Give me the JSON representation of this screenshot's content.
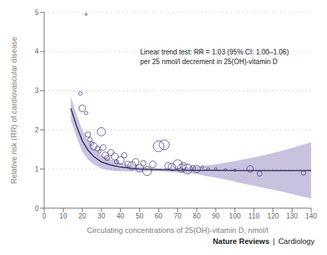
{
  "chart_data": {
    "type": "scatter",
    "xlabel": "Circulating concentrations of 25(OH)-vitamin D, nmol/l",
    "ylabel": "Relative risk (RR) of cardiovascular disease",
    "xlim": [
      0,
      140
    ],
    "ylim": [
      0,
      5
    ],
    "xticks": [
      0,
      10,
      20,
      30,
      40,
      50,
      60,
      70,
      80,
      90,
      100,
      110,
      120,
      130,
      140
    ],
    "yticks": [
      0,
      1,
      2,
      3,
      4,
      5
    ],
    "grid": "y",
    "annotations": [
      "Linear trend test: RR = 1.03 (95% CI: 1.00–1.06)\nper 25 nmol/l decrement in 25(OH)-vitamin D"
    ],
    "source": [
      "Nature Reviews",
      "|",
      "Cardiology"
    ],
    "series": [
      {
        "type": "band",
        "color": "#8878b8",
        "x": [
          14,
          17,
          20,
          23,
          26,
          30,
          35,
          40,
          45,
          50,
          55,
          60,
          65,
          70,
          75,
          80,
          85,
          90,
          95,
          100,
          105,
          110,
          115,
          120,
          125,
          130,
          135,
          140
        ],
        "lower": [
          2.25,
          1.82,
          1.44,
          1.24,
          1.12,
          1.01,
          0.96,
          0.94,
          0.94,
          0.94,
          0.94,
          0.94,
          0.93,
          0.91,
          0.9,
          0.87,
          0.82,
          0.78,
          0.73,
          0.68,
          0.62,
          0.57,
          0.52,
          0.47,
          0.42,
          0.36,
          0.3,
          0.25
        ],
        "upper": [
          2.85,
          2.38,
          2.0,
          1.72,
          1.52,
          1.35,
          1.24,
          1.16,
          1.1,
          1.06,
          1.04,
          1.02,
          1.02,
          1.03,
          1.04,
          1.06,
          1.09,
          1.12,
          1.16,
          1.2,
          1.25,
          1.3,
          1.35,
          1.41,
          1.47,
          1.54,
          1.61,
          1.68
        ]
      },
      {
        "type": "line",
        "color": "#2d2650",
        "x": [
          14,
          17,
          20,
          23,
          26,
          30,
          35,
          40,
          45,
          50,
          55,
          60,
          65,
          70,
          75,
          80,
          85,
          90,
          95,
          100,
          105,
          110,
          115,
          120,
          125,
          130,
          135,
          140
        ],
        "values": [
          2.55,
          2.1,
          1.72,
          1.48,
          1.32,
          1.18,
          1.1,
          1.05,
          1.02,
          1.0,
          0.99,
          0.98,
          0.975,
          0.97,
          0.968,
          0.966,
          0.964,
          0.963,
          0.962,
          0.961,
          0.961,
          0.96,
          0.96,
          0.959,
          0.959,
          0.959,
          0.958,
          0.958
        ]
      },
      {
        "type": "scatter",
        "color": "#4a3d7a",
        "marker": "circle",
        "x": [
          22,
          19,
          20,
          22,
          23,
          24,
          25,
          26,
          28,
          30,
          29,
          31,
          32,
          33,
          35,
          37,
          38,
          40,
          42,
          44,
          46,
          48,
          50,
          52,
          54,
          57,
          60,
          63,
          65,
          67,
          70,
          72,
          73,
          75,
          78,
          80,
          83,
          86,
          90,
          95,
          100,
          108,
          113,
          136
        ],
        "values": [
          4.95,
          2.93,
          2.55,
          2.43,
          1.88,
          1.75,
          1.65,
          1.58,
          1.52,
          1.95,
          1.45,
          1.55,
          1.35,
          1.28,
          1.42,
          1.32,
          1.18,
          1.22,
          1.35,
          1.12,
          1.08,
          1.18,
          1.02,
          1.15,
          0.95,
          1.12,
          1.58,
          1.62,
          1.08,
          1.05,
          1.12,
          1.02,
          1.08,
          1.0,
          1.02,
          1.0,
          1.05,
          1.0,
          1.0,
          0.98,
          0.97,
          1.0,
          0.88,
          0.9
        ],
        "sizes": [
          5,
          9,
          16,
          8,
          13,
          11,
          9,
          17,
          12,
          20,
          8,
          14,
          16,
          12,
          15,
          17,
          10,
          18,
          13,
          15,
          20,
          16,
          18,
          13,
          22,
          16,
          26,
          24,
          16,
          18,
          22,
          20,
          16,
          24,
          13,
          18,
          6,
          6,
          6,
          6,
          6,
          16,
          12,
          11
        ]
      }
    ]
  }
}
